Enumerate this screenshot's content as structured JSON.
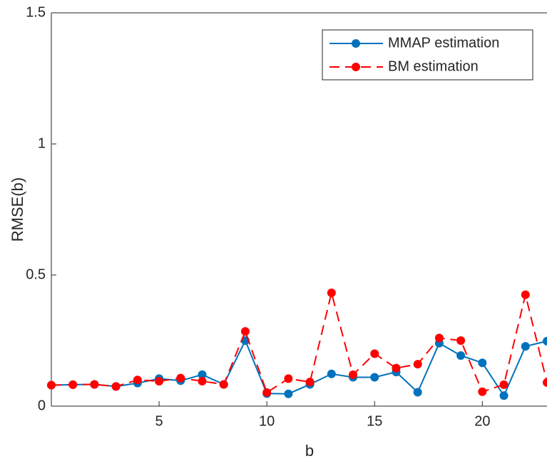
{
  "chart_data": {
    "type": "line",
    "xlabel": "b",
    "ylabel": "RMSE(b)",
    "x": [
      0,
      1,
      2,
      3,
      4,
      5,
      6,
      7,
      8,
      9,
      10,
      11,
      12,
      13,
      14,
      15,
      16,
      17,
      18,
      19,
      20,
      21,
      22,
      23
    ],
    "series": [
      {
        "name": "MMAP estimation",
        "color": "#0072bd",
        "dash": false,
        "values": [
          0.08,
          0.082,
          0.083,
          0.075,
          0.088,
          0.105,
          0.097,
          0.12,
          0.083,
          0.25,
          0.048,
          0.047,
          0.083,
          0.123,
          0.11,
          0.11,
          0.13,
          0.053,
          0.24,
          0.193,
          0.165,
          0.04,
          0.228,
          0.248
        ]
      },
      {
        "name": "BM estimation",
        "color": "#ff0000",
        "dash": true,
        "values": [
          0.08,
          0.082,
          0.083,
          0.075,
          0.1,
          0.095,
          0.107,
          0.095,
          0.083,
          0.285,
          0.052,
          0.105,
          0.092,
          0.432,
          0.12,
          0.2,
          0.145,
          0.16,
          0.26,
          0.25,
          0.055,
          0.082,
          0.425,
          0.09
        ]
      }
    ],
    "xlim": [
      0,
      23
    ],
    "ylim": [
      0,
      1.5
    ],
    "xticks": [
      5,
      10,
      15,
      20
    ],
    "yticks": [
      0,
      0.5,
      1,
      1.5
    ],
    "grid": false,
    "legend": "northeast"
  }
}
